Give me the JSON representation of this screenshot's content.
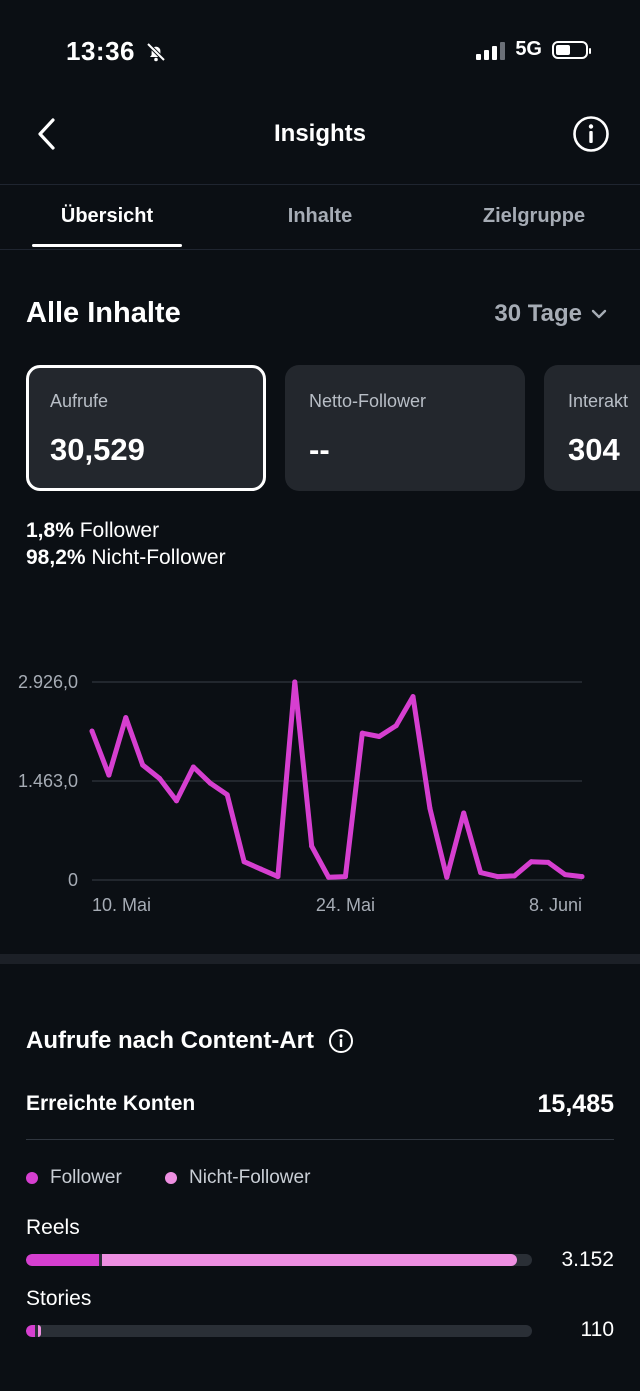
{
  "status": {
    "time": "13:36",
    "network": "5G"
  },
  "header": {
    "title": "Insights"
  },
  "tabs": [
    {
      "label": "Übersicht"
    },
    {
      "label": "Inhalte"
    },
    {
      "label": "Zielgruppe"
    }
  ],
  "section": {
    "title": "Alle Inhalte",
    "range": "30 Tage"
  },
  "cards": [
    {
      "label": "Aufrufe",
      "value": "30,529"
    },
    {
      "label": "Netto-Follower",
      "value": "--"
    },
    {
      "label": "Interakt",
      "value": "304"
    }
  ],
  "split": {
    "follower_pct": "1,8%",
    "follower_label": "Follower",
    "nonfollower_pct": "98,2%",
    "nonfollower_label": "Nicht-Follower"
  },
  "chart_data": {
    "type": "line",
    "color": "#d63fd0",
    "y_ticks": [
      "2.926,0",
      "1.463,0",
      "0"
    ],
    "x_ticks": [
      "10. Mai",
      "24. Mai",
      "8. Juni"
    ],
    "ylim": [
      0,
      2926
    ],
    "grid": true,
    "values": [
      2200,
      1550,
      2400,
      1700,
      1500,
      1170,
      1670,
      1430,
      1260,
      270,
      160,
      50,
      2926,
      500,
      40,
      50,
      2170,
      2120,
      2280,
      2710,
      1060,
      40,
      990,
      110,
      50,
      60,
      270,
      260,
      80,
      50
    ]
  },
  "content_type": {
    "title": "Aufrufe nach Content-Art",
    "reach_label": "Erreichte Konten",
    "reach_value": "15,485",
    "legend": [
      {
        "label": "Follower",
        "color": "#d63fd0"
      },
      {
        "label": "Nicht-Follower",
        "color": "#ee8fe1"
      }
    ],
    "rows": [
      {
        "label": "Reels",
        "value": "3.152",
        "follower_frac": 0.145,
        "nonfollower_frac": 0.825
      },
      {
        "label": "Stories",
        "value": "110",
        "follower_frac": 0.018,
        "nonfollower_frac": 0.012
      }
    ]
  }
}
